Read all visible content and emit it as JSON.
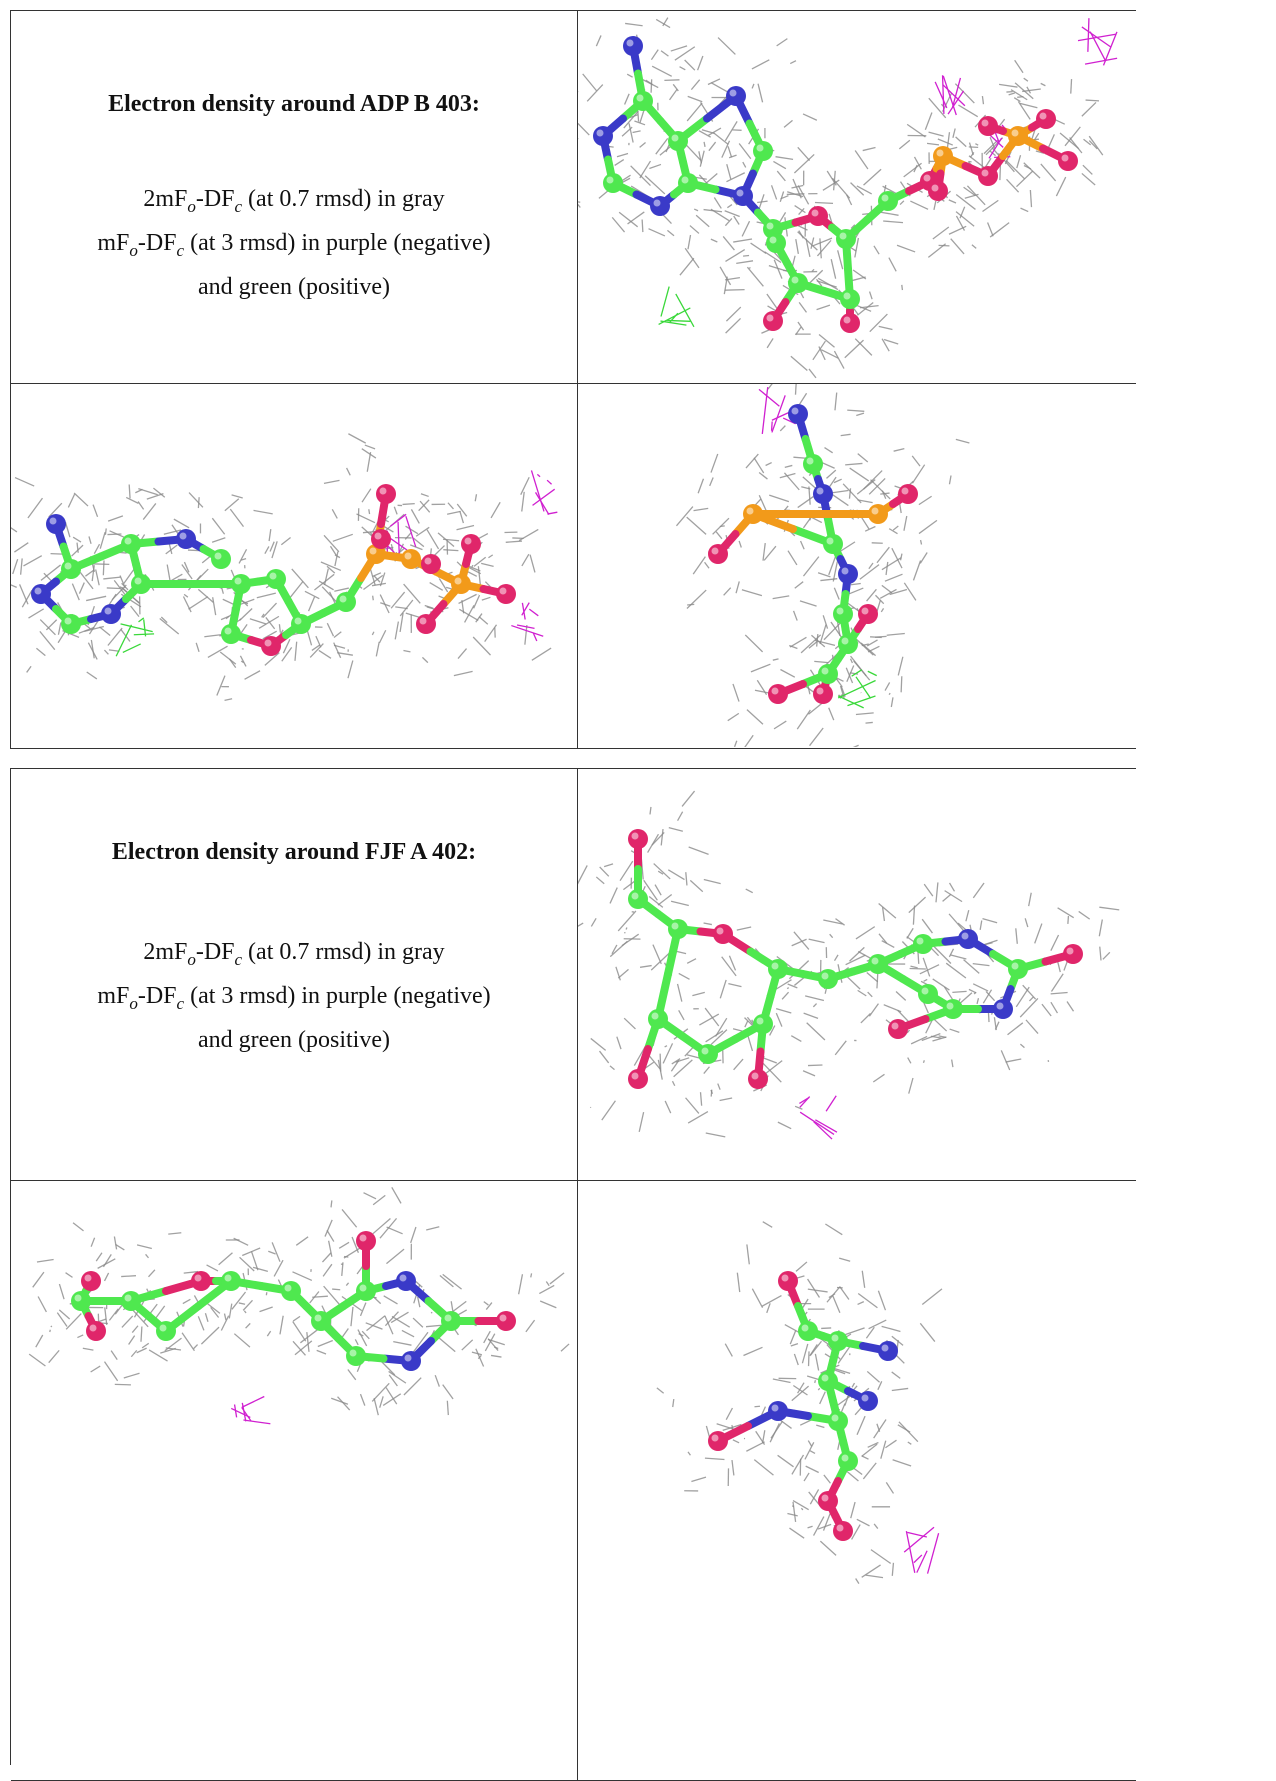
{
  "sections": [
    {
      "title": "Electron density around ADP B 403:",
      "legend": [
        [
          "2mF",
          "o",
          "-DF",
          "c",
          " (at 0.7 rmsd) in gray"
        ],
        [
          "mF",
          "o",
          "-DF",
          "c",
          " (at 3 rmsd) in purple (negative)"
        ],
        [
          "and green (positive)"
        ]
      ]
    },
    {
      "title": "Electron density around FJF A 402:",
      "legend": [
        [
          "2mF",
          "o",
          "-DF",
          "c",
          " (at 0.7 rmsd) in gray"
        ],
        [
          "mF",
          "o",
          "-DF",
          "c",
          " (at 3 rmsd) in purple (negative)"
        ],
        [
          "and green (positive)"
        ]
      ]
    }
  ]
}
